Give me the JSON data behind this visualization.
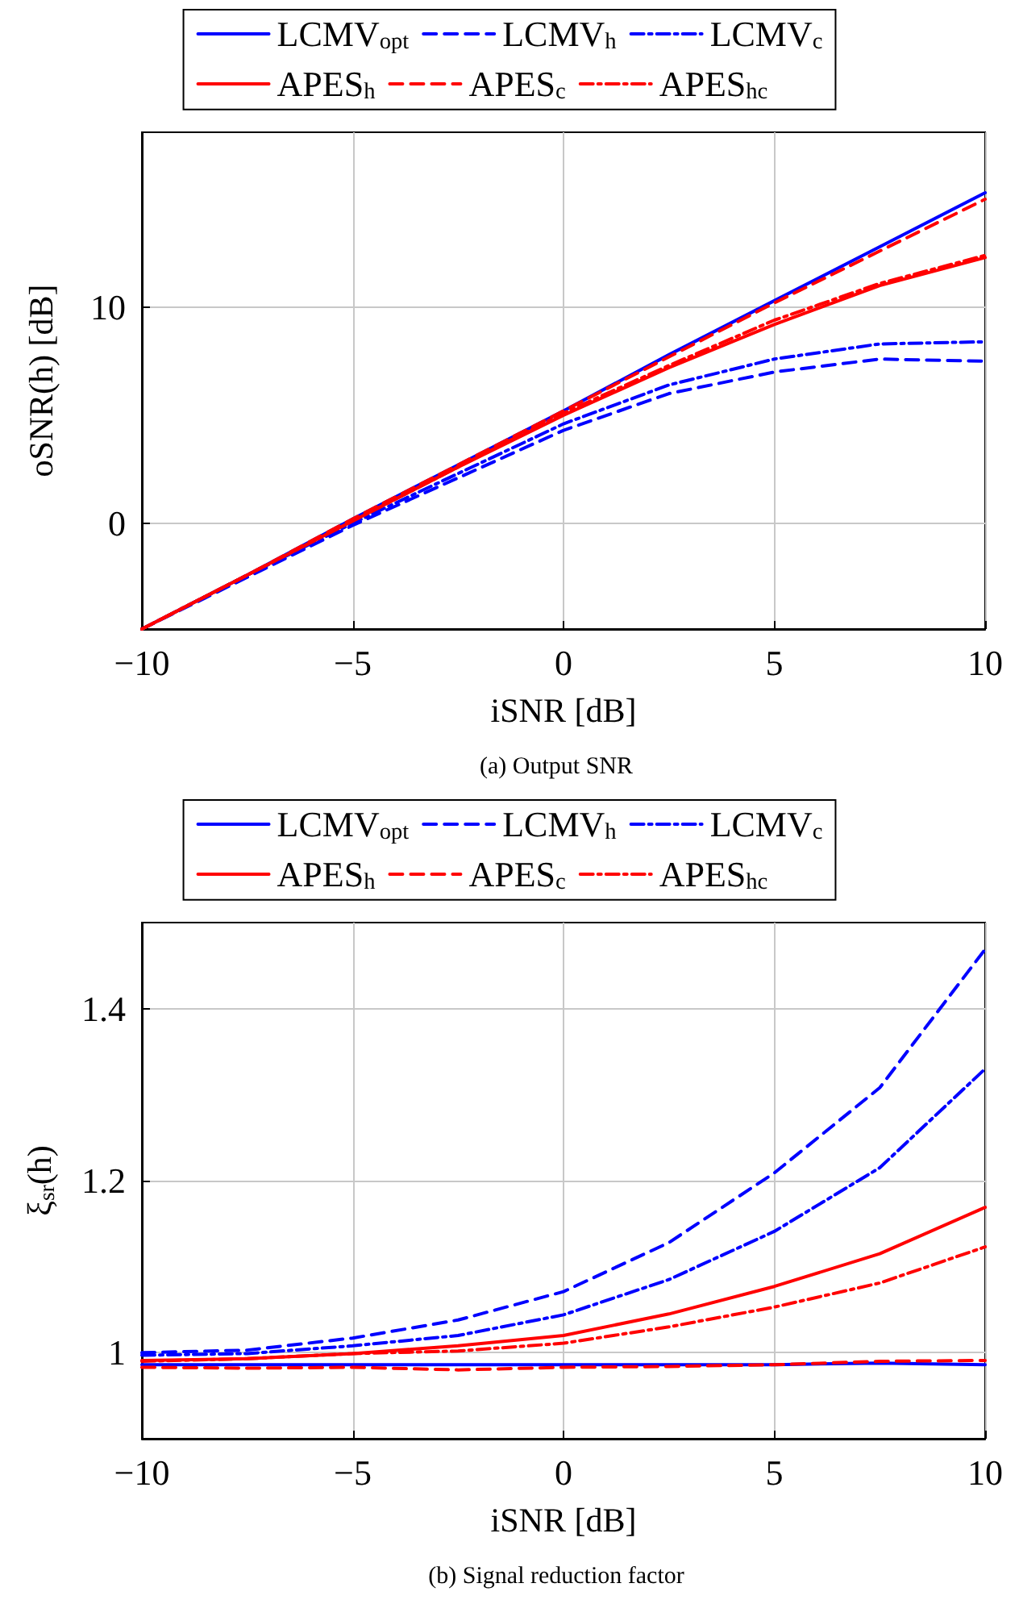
{
  "chart_data": [
    {
      "type": "line",
      "title": "(a) Output SNR",
      "xlabel": "iSNR [dB]",
      "ylabel": "oSNR(h) [dB]",
      "x": [
        -10,
        -7.5,
        -5,
        -2.5,
        0,
        2.5,
        5,
        7.5,
        10
      ],
      "xlim": [
        -10,
        10
      ],
      "xticks": [
        -10,
        -5,
        0,
        5,
        10
      ],
      "ylim": [
        -4.9,
        18.1
      ],
      "yticks": [
        0,
        10
      ],
      "grid": true,
      "legend": "top",
      "marker": "none",
      "series": [
        {
          "name": "LCMV$_{opt}$",
          "color": "#0000ff",
          "line_style": "solid",
          "values": [
            -4.9,
            -2.4,
            0.2,
            2.7,
            5.2,
            7.8,
            10.3,
            12.8,
            15.3
          ]
        },
        {
          "name": "LCMV$_{h}$",
          "color": "#0000ff",
          "line_style": "dashed",
          "values": [
            -4.9,
            -2.5,
            -0.1,
            2.1,
            4.3,
            6.0,
            7.0,
            7.6,
            7.5
          ]
        },
        {
          "name": "LCMV$_{c}$",
          "color": "#0000ff",
          "line_style": "dashdot",
          "values": [
            -4.9,
            -2.4,
            0.0,
            2.3,
            4.6,
            6.4,
            7.6,
            8.3,
            8.4
          ]
        },
        {
          "name": "APES$_{h}$",
          "color": "#ff0000",
          "line_style": "solid",
          "values": [
            -4.9,
            -2.4,
            0.1,
            2.6,
            5.0,
            7.2,
            9.2,
            11.0,
            12.3
          ]
        },
        {
          "name": "APES$_{c}$",
          "color": "#ff0000",
          "line_style": "dashed",
          "values": [
            -4.9,
            -2.4,
            0.2,
            2.7,
            5.2,
            7.7,
            10.2,
            12.6,
            15.0
          ]
        },
        {
          "name": "APES$_{hc}$",
          "color": "#ff0000",
          "line_style": "dashdot",
          "values": [
            -4.9,
            -2.4,
            0.1,
            2.6,
            5.1,
            7.3,
            9.4,
            11.1,
            12.4
          ]
        }
      ]
    },
    {
      "type": "line",
      "title": "(b) Signal reduction factor",
      "xlabel": "iSNR [dB]",
      "ylabel": "ξ$_{sr}$(h)",
      "x": [
        -10,
        -7.5,
        -5,
        -2.5,
        0,
        2.5,
        5,
        7.5,
        10
      ],
      "xlim": [
        -10,
        10
      ],
      "xticks": [
        -10,
        -5,
        0,
        5,
        10
      ],
      "ylim": [
        0.9,
        1.5
      ],
      "yticks": [
        1,
        1.2,
        1.4
      ],
      "grid": true,
      "legend": "top",
      "marker": "none",
      "series": [
        {
          "name": "LCMV$_{opt}$",
          "color": "#0000ff",
          "line_style": "solid",
          "values": [
            0.986,
            0.986,
            0.986,
            0.986,
            0.986,
            0.986,
            0.986,
            0.988,
            0.986
          ]
        },
        {
          "name": "LCMV$_{h}$",
          "color": "#0000ff",
          "line_style": "dashed",
          "values": [
            1.0,
            1.003,
            1.017,
            1.038,
            1.071,
            1.128,
            1.209,
            1.308,
            1.469
          ]
        },
        {
          "name": "LCMV$_{c}$",
          "color": "#0000ff",
          "line_style": "dashdot",
          "values": [
            0.997,
            0.999,
            1.008,
            1.02,
            1.044,
            1.085,
            1.141,
            1.215,
            1.33
          ]
        },
        {
          "name": "APES$_{h}$",
          "color": "#ff0000",
          "line_style": "solid",
          "values": [
            0.991,
            0.993,
            0.999,
            1.008,
            1.02,
            1.045,
            1.077,
            1.115,
            1.169
          ]
        },
        {
          "name": "APES$_{c}$",
          "color": "#ff0000",
          "line_style": "dashed",
          "values": [
            0.983,
            0.982,
            0.983,
            0.98,
            0.983,
            0.984,
            0.986,
            0.99,
            0.991
          ]
        },
        {
          "name": "APES$_{hc}$",
          "color": "#ff0000",
          "line_style": "dashdot",
          "values": [
            0.99,
            0.993,
            0.999,
            1.002,
            1.011,
            1.03,
            1.053,
            1.081,
            1.123
          ]
        }
      ]
    }
  ]
}
